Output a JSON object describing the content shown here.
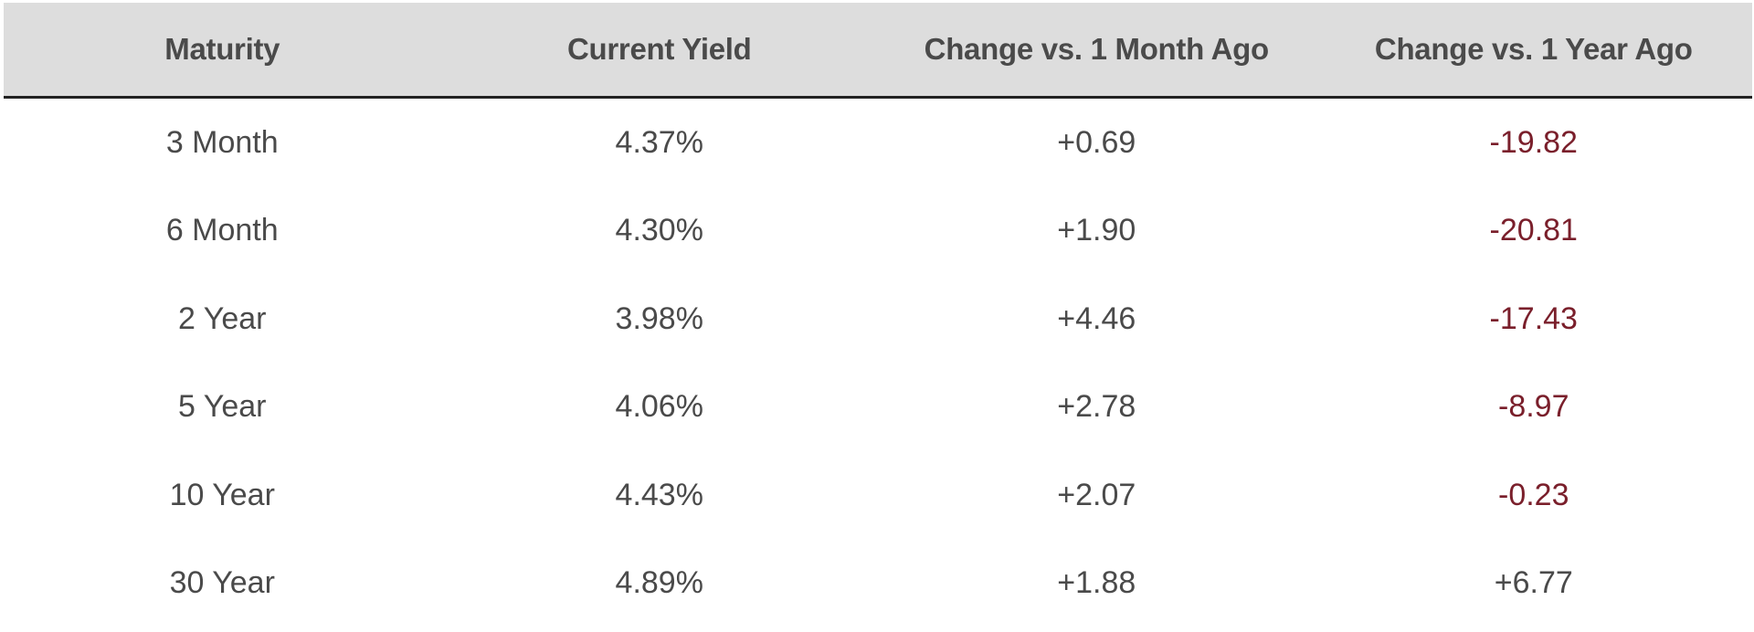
{
  "table": {
    "headers": [
      "Maturity",
      "Current Yield",
      "Change vs. 1 Month Ago",
      "Change vs. 1 Year Ago"
    ],
    "rows": [
      [
        "3 Month",
        "4.37%",
        "+0.69",
        "-19.82"
      ],
      [
        "6 Month",
        "4.30%",
        "+1.90",
        "-20.81"
      ],
      [
        "2 Year",
        "3.98%",
        "+4.46",
        "-17.43"
      ],
      [
        "5 Year",
        "4.06%",
        "+2.78",
        "-8.97"
      ],
      [
        "10 Year",
        "4.43%",
        "+2.07",
        "-0.23"
      ],
      [
        "30 Year",
        "4.89%",
        "+1.88",
        "+6.77"
      ]
    ]
  },
  "colors": {
    "header_bg": "#dddddd",
    "text": "#4a4a4a",
    "negative": "#7a1f2b",
    "rule": "#222222"
  }
}
